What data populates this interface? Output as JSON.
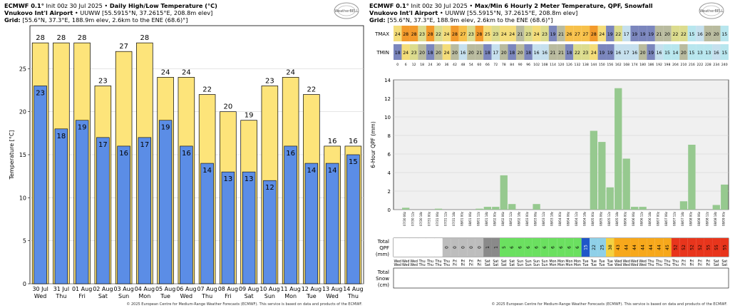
{
  "left": {
    "header": {
      "model": "ECMWF 0.1°",
      "init": "Init 00z 30 Jul 2025",
      "title": "Daily High/Low Temperature (°C)",
      "station": "Vnukovo Int'l Airport",
      "station_info": "UUWW [55.5915°N, 37.2615°E, 208.8m elev]",
      "grid_label": "Grid:",
      "grid_info": "[55.6°N, 37.3°E, 188.9m elev, 2.6km to the ENE (68.6)°]"
    },
    "logo_text": "WeatherBELL",
    "footer": "© 2025 European Centre for Medium-Range Weather Forecasts (ECMWF). This service is based on data and products of the ECMWF."
  },
  "right": {
    "header": {
      "model": "ECMWF 0.1°",
      "init": "Init 00z 30 Jul 2025",
      "title": "Max/Min 6 Hourly 2 Meter Temperature,  QPF,  Snowfall",
      "station": "Vnukovo Int'l Airport",
      "station_info": "UUWW [55.5915°N, 37.2615°E, 208.8m elev]",
      "grid_label": "Grid:",
      "grid_info": "[55.6°N, 37.3°E, 188.9m elev, 2.6km to the ENE (68.6)°]"
    },
    "logo_text": "WeatherBELL",
    "footer": "© 2025 European Centre for Medium-Range Weather Forecasts (ECMWF). This service is based on data and products of the ECMWF.",
    "tmax_label": "TMAX",
    "tmin_label": "TMIN",
    "qpf_total_label": [
      "Total",
      "QPF",
      "(mm)"
    ],
    "snow_total_label": [
      "Total",
      "Snow",
      "(cm)"
    ]
  },
  "colors": {
    "high_bar": "#fde47a",
    "low_bar": "#5b8de6",
    "qpf_bar": "#96c98f",
    "grid_bg": "#f0f0f0"
  },
  "chart_data": [
    {
      "type": "bar",
      "title": "Daily High/Low Temperature (°C)",
      "ylabel": "Temperature [°C]",
      "ylim": [
        0,
        30
      ],
      "yticks": [
        0,
        5,
        10,
        15,
        20,
        25
      ],
      "grid": true,
      "categories": [
        "30 Jul\nWed",
        "31 Jul\nThu",
        "01 Aug\nFri",
        "02 Aug\nSat",
        "03 Aug\nSun",
        "04 Aug\nMon",
        "05 Aug\nTue",
        "06 Aug\nWed",
        "07 Aug\nThu",
        "08 Aug\nFri",
        "09 Aug\nSat",
        "10 Aug\nSun",
        "11 Aug\nMon",
        "12 Aug\nTue",
        "13 Aug\nWed",
        "14 Aug\nThu"
      ],
      "series": [
        {
          "name": "High",
          "values": [
            28,
            28,
            28,
            23,
            27,
            28,
            24,
            24,
            22,
            20,
            19,
            23,
            24,
            22,
            16,
            16
          ]
        },
        {
          "name": "Low",
          "values": [
            23,
            18,
            19,
            17,
            16,
            17,
            19,
            16,
            14,
            13,
            13,
            12,
            16,
            14,
            14,
            15
          ]
        }
      ]
    },
    {
      "type": "table",
      "rows": [
        "TMAX",
        "TMIN"
      ],
      "x_hours": [
        0,
        6,
        12,
        18,
        24,
        30,
        36,
        42,
        48,
        54,
        60,
        66,
        72,
        78,
        84,
        90,
        96,
        102,
        108,
        114,
        120,
        126,
        132,
        138,
        144,
        150,
        156,
        162,
        168,
        174,
        180,
        186,
        192,
        198,
        204,
        210,
        216,
        222,
        228,
        234,
        240
      ],
      "tmax": [
        24,
        28,
        28,
        23,
        28,
        22,
        24,
        28,
        27,
        23,
        28,
        25,
        23,
        24,
        24,
        21,
        23,
        24,
        23,
        19,
        21,
        26,
        27,
        27,
        28,
        24,
        19,
        22,
        17,
        19,
        19,
        19,
        21,
        20,
        22,
        22,
        15,
        16,
        20,
        20,
        15
      ],
      "tmin": [
        18,
        24,
        23,
        20,
        18,
        20,
        24,
        20,
        16,
        20,
        21,
        18,
        17,
        20,
        18,
        20,
        18,
        16,
        16,
        21,
        21,
        18,
        22,
        23,
        24,
        19,
        19,
        16,
        17,
        16,
        20,
        19,
        16,
        15,
        14,
        20,
        15,
        13,
        13,
        16,
        15
      ]
    },
    {
      "type": "bar",
      "ylabel": "6-Hour QPF (mm)",
      "ylim": [
        0,
        14
      ],
      "yticks": [
        0,
        2,
        4,
        6,
        8,
        10,
        12,
        14
      ],
      "grid": true,
      "x_hours": [
        6,
        12,
        18,
        24,
        30,
        36,
        42,
        48,
        54,
        60,
        66,
        72,
        78,
        84,
        90,
        96,
        102,
        108,
        114,
        120,
        126,
        132,
        138,
        144,
        150,
        156,
        162,
        168,
        174,
        180,
        186,
        192,
        198,
        204,
        210,
        216,
        222,
        228,
        234,
        240
      ],
      "values": [
        0.2,
        0,
        0,
        0,
        0.1,
        0,
        0,
        0,
        0,
        0.1,
        0.3,
        0.3,
        3.7,
        0.6,
        0,
        0,
        0.6,
        0,
        0,
        0,
        0,
        0,
        0,
        8.5,
        7.3,
        2.4,
        13.1,
        5.5,
        0.3,
        0.3,
        0,
        0,
        0,
        0,
        0.9,
        7.0,
        0,
        0,
        0.5,
        2.7
      ]
    },
    {
      "type": "table",
      "name": "Total QPF",
      "x_hours": [
        0,
        6,
        12,
        18,
        24,
        30,
        36,
        42,
        48,
        54,
        60,
        66,
        72,
        78,
        84,
        90,
        96,
        102,
        108,
        114,
        120,
        126,
        132,
        138,
        144,
        150,
        156,
        162,
        168,
        174,
        180,
        186,
        192,
        198,
        204,
        210,
        216,
        222,
        228,
        234,
        240
      ],
      "values": [
        "",
        "",
        "",
        "",
        "",
        "",
        "0",
        "0",
        "0",
        "0",
        "0",
        "1",
        "1",
        "5",
        "6",
        "6",
        "6",
        "6",
        "6",
        "6",
        "6",
        "6",
        "6",
        "15",
        "22",
        "25",
        "38",
        "43",
        "44",
        "44",
        "44",
        "44",
        "44",
        "45",
        "52",
        "52",
        "52",
        "52",
        "55",
        "55",
        "55"
      ]
    },
    {
      "type": "table",
      "name": "Total Snow",
      "values": []
    }
  ],
  "day_labels": [
    "Wed",
    "Wed",
    "Wed",
    "Thu",
    "Thu",
    "Thu",
    "Thu",
    "Fri",
    "Fri",
    "Fri",
    "Fri",
    "Sat",
    "Sat",
    "Sat",
    "Sat",
    "Sun",
    "Sun",
    "Sun",
    "Sun",
    "Mon",
    "Mon",
    "Mon",
    "Mon",
    "Tue",
    "Tue",
    "Tue",
    "Tue",
    "Wed",
    "Wed",
    "Wed",
    "Wed",
    "Thu",
    "Thu",
    "Thu",
    "Thu",
    "Fri",
    "Fri",
    "Fri",
    "Fri",
    "Sat",
    "Sat"
  ],
  "qpf_time_labels": [
    "07/30 06z",
    "07/30 12z",
    "07/30 18z",
    "07/31 00z",
    "07/31 06z",
    "07/31 12z",
    "07/31 18z",
    "08/01 00z",
    "08/01 06z",
    "08/01 12z",
    "08/01 18z",
    "08/02 00z",
    "08/02 06z",
    "08/02 12z",
    "08/02 18z",
    "08/03 00z",
    "08/03 06z",
    "08/03 12z",
    "08/03 18z",
    "08/04 00z",
    "08/04 06z",
    "08/04 12z",
    "08/04 18z",
    "08/05 00z",
    "08/05 06z",
    "08/05 12z",
    "08/05 18z",
    "08/06 00z",
    "08/06 06z",
    "08/06 12z",
    "08/06 18z",
    "08/07 00z",
    "08/07 06z",
    "08/07 12z",
    "08/07 18z",
    "08/08 00z",
    "08/08 06z",
    "08/08 12z",
    "08/08 18z",
    "08/09 00z"
  ]
}
